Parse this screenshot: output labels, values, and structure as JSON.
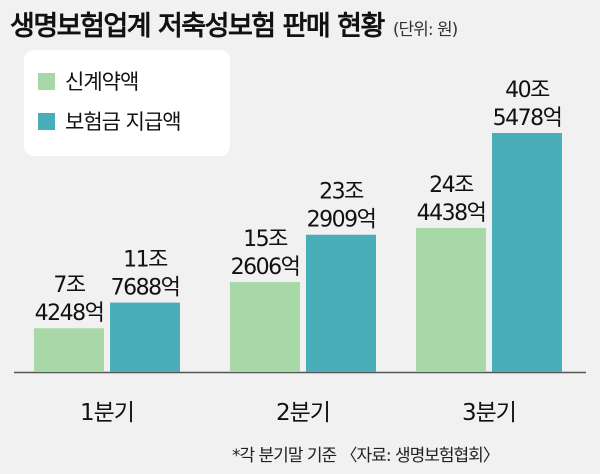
{
  "title": "생명보험업계 저축성보험 판매 현황",
  "unit": "(단위: 원)",
  "footnote": "*각 분기말 기준 〈자료: 생명보험협회〉",
  "colors": {
    "new_contract": "#a8d8a8",
    "insurance_paid": "#4aaeb8",
    "background": "#f1f1f1"
  },
  "chart_data": {
    "type": "bar",
    "categories": [
      "1분기",
      "2분기",
      "3분기"
    ],
    "series": [
      {
        "name": "신계약액",
        "values": [
          74248,
          152606,
          244438
        ],
        "labels": [
          [
            "7조",
            "4248억"
          ],
          [
            "15조",
            "2606억"
          ],
          [
            "24조",
            "4438억"
          ]
        ]
      },
      {
        "name": "보험금 지급액",
        "values": [
          117688,
          232909,
          405478
        ],
        "labels": [
          [
            "11조",
            "7688억"
          ],
          [
            "23조",
            "2909억"
          ],
          [
            "40조",
            "5478억"
          ]
        ]
      }
    ],
    "value_unit": "억원",
    "legend_position": "top-left",
    "grid": false
  }
}
